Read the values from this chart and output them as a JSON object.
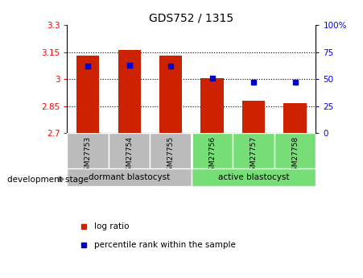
{
  "title": "GDS752 / 1315",
  "samples": [
    "GSM27753",
    "GSM27754",
    "GSM27755",
    "GSM27756",
    "GSM27757",
    "GSM27758"
  ],
  "log_ratios": [
    3.13,
    3.162,
    3.13,
    3.005,
    2.88,
    2.865
  ],
  "percentile_ranks": [
    62,
    63,
    62,
    51,
    47,
    47
  ],
  "bar_bottom": 2.7,
  "ylim_left": [
    2.7,
    3.3
  ],
  "ylim_right": [
    0,
    100
  ],
  "yticks_left": [
    2.7,
    2.85,
    3.0,
    3.15,
    3.3
  ],
  "ytick_labels_left": [
    "2.7",
    "2.85",
    "3",
    "3.15",
    "3.3"
  ],
  "yticks_right": [
    0,
    25,
    50,
    75,
    100
  ],
  "ytick_labels_right": [
    "0",
    "25",
    "50",
    "75",
    "100%"
  ],
  "hlines": [
    2.85,
    3.0,
    3.15
  ],
  "group1_label": "dormant blastocyst",
  "group2_label": "active blastocyst",
  "bar_color": "#CC2200",
  "percentile_color": "#0000CC",
  "group1_bg": "#BBBBBB",
  "group2_bg": "#77DD77",
  "dev_stage_label": "development stage",
  "legend_log_ratio": "log ratio",
  "legend_percentile": "percentile rank within the sample",
  "bar_width": 0.55
}
